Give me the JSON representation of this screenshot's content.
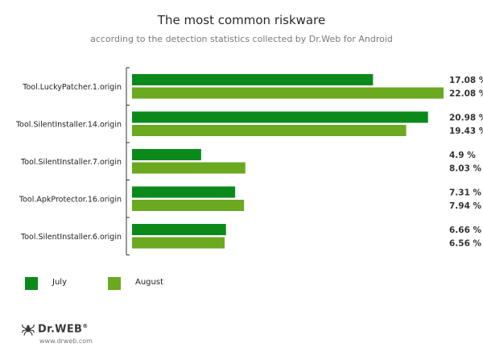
{
  "title": "The most common riskware",
  "subtitle": "according to the detection statistics collected by Dr.Web for Android",
  "chart_data": {
    "type": "bar",
    "orientation": "horizontal",
    "categories": [
      "Tool.LuckyPatcher.1.origin",
      "Tool.SilentInstaller.14.origin",
      "Tool.SilentInstaller.7.origin",
      "Tool.ApkProtector.16.origin",
      "Tool.SilentInstaller.6.origin"
    ],
    "series": [
      {
        "name": "July",
        "values": [
          17.08,
          20.98,
          4.9,
          7.31,
          6.66
        ],
        "labels": [
          "17.08 %",
          "20.98 %",
          "4.9 %",
          "7.31 %",
          "6.66 %"
        ],
        "color": "#0b8a1b"
      },
      {
        "name": "August",
        "values": [
          22.08,
          19.43,
          8.03,
          7.94,
          6.56
        ],
        "labels": [
          "22.08 %",
          "19.43 %",
          "8.03 %",
          "7.94 %",
          "6.56 %"
        ],
        "color": "#6aa920"
      }
    ],
    "xlim": [
      0,
      22.08
    ],
    "legend": "bottom-left",
    "grid": false
  },
  "logo": {
    "name": "Dr.WEB",
    "registered": "®",
    "url": "www.drweb.com"
  }
}
